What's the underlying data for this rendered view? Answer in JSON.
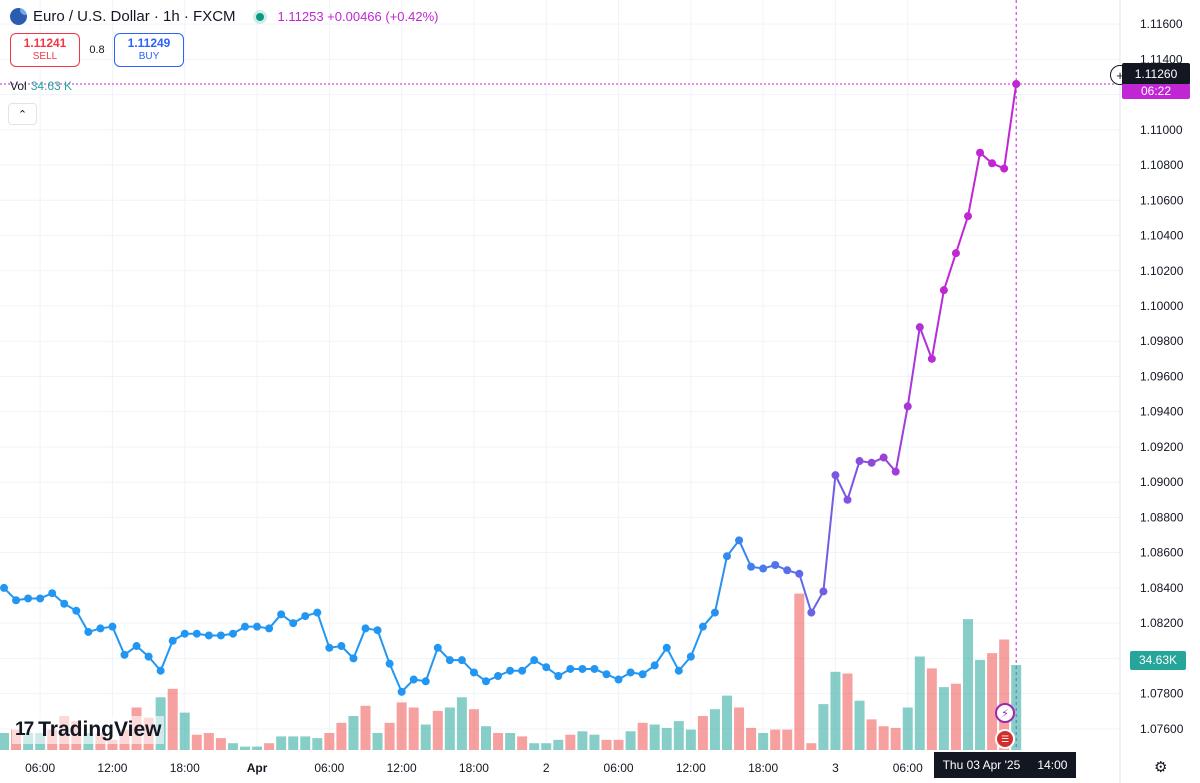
{
  "legend": {
    "symbol": "Euro / U.S. Dollar · 1h · FXCM",
    "quote": "1.11253 +0.00466 (+0.42%)"
  },
  "trade": {
    "sell_price": "1.11241",
    "sell_label": "SELL",
    "spread": "0.8",
    "buy_price": "1.11249",
    "buy_label": "BUY"
  },
  "volume_legend": {
    "label": "Vol",
    "value": "34.63 K"
  },
  "price_label": {
    "price": "1.11260",
    "countdown": "06:22"
  },
  "volume_label": "34.63K",
  "crosshair_date": {
    "date": "Thu 03 Apr '25",
    "time": "14:00"
  },
  "branding": "TradingView",
  "colors": {
    "line_blue": "#2196f3",
    "line_purple": "#c026d3",
    "vol_up": "#26a69a",
    "vol_down": "#ef5350"
  },
  "chart_data": {
    "type": "line",
    "y_ticks": [
      "1.11600",
      "1.11400",
      "1.11200",
      "1.11000",
      "1.10800",
      "1.10600",
      "1.10400",
      "1.10200",
      "1.10000",
      "1.09800",
      "1.09600",
      "1.09400",
      "1.09200",
      "1.09000",
      "1.08800",
      "1.08600",
      "1.08400",
      "1.08200",
      "1.08000",
      "1.07800",
      "1.07600"
    ],
    "ylim": [
      1.0748,
      1.1168
    ],
    "x_ticks": [
      {
        "i": 3,
        "label": "06:00"
      },
      {
        "i": 9,
        "label": "12:00"
      },
      {
        "i": 15,
        "label": "18:00"
      },
      {
        "i": 21,
        "label": "Apr"
      },
      {
        "i": 27,
        "label": "06:00"
      },
      {
        "i": 33,
        "label": "12:00"
      },
      {
        "i": 39,
        "label": "18:00"
      },
      {
        "i": 45,
        "label": "2"
      },
      {
        "i": 51,
        "label": "06:00"
      },
      {
        "i": 57,
        "label": "12:00"
      },
      {
        "i": 63,
        "label": "18:00"
      },
      {
        "i": 69,
        "label": "3"
      },
      {
        "i": 75,
        "label": "06:00"
      }
    ],
    "price": [
      1.084,
      1.0833,
      1.0834,
      1.0834,
      1.0837,
      1.0831,
      1.0827,
      1.0815,
      1.0817,
      1.0818,
      1.0802,
      1.0807,
      1.0801,
      1.0793,
      1.081,
      1.0814,
      1.0814,
      1.0813,
      1.0813,
      1.0814,
      1.0818,
      1.0818,
      1.0817,
      1.0825,
      1.082,
      1.0824,
      1.0826,
      1.0806,
      1.0807,
      1.08,
      1.0817,
      1.0816,
      1.0797,
      1.0781,
      1.0788,
      1.0787,
      1.0806,
      1.0799,
      1.0799,
      1.0792,
      1.0787,
      1.079,
      1.0793,
      1.0793,
      1.0799,
      1.0795,
      1.079,
      1.0794,
      1.0794,
      1.0794,
      1.0791,
      1.0788,
      1.0792,
      1.0791,
      1.0796,
      1.0806,
      1.0793,
      1.0801,
      1.0818,
      1.0826,
      1.0858,
      1.0867,
      1.0852,
      1.0851,
      1.0853,
      1.085,
      1.0848,
      1.0826,
      1.0838,
      1.0904,
      1.089,
      1.0912,
      1.0911,
      1.0914,
      1.0906,
      1.0943,
      1.0988,
      1.097,
      1.1009,
      1.103,
      1.1051,
      1.1087,
      1.1081,
      1.1078,
      1.1126
    ],
    "volume": [
      [
        1,
        0.1
      ],
      [
        0,
        0.12
      ],
      [
        1,
        0.1
      ],
      [
        1,
        0.1
      ],
      [
        0,
        0.12
      ],
      [
        0,
        0.2
      ],
      [
        0,
        0.17
      ],
      [
        1,
        0.1
      ],
      [
        0,
        0.1
      ],
      [
        0,
        0.06
      ],
      [
        0,
        0.12
      ],
      [
        0,
        0.25
      ],
      [
        0,
        0.19
      ],
      [
        1,
        0.31
      ],
      [
        0,
        0.36
      ],
      [
        1,
        0.22
      ],
      [
        0,
        0.09
      ],
      [
        0,
        0.1
      ],
      [
        0,
        0.07
      ],
      [
        1,
        0.04
      ],
      [
        1,
        0.02
      ],
      [
        1,
        0.02
      ],
      [
        0,
        0.04
      ],
      [
        1,
        0.08
      ],
      [
        1,
        0.08
      ],
      [
        1,
        0.08
      ],
      [
        1,
        0.07
      ],
      [
        0,
        0.1
      ],
      [
        0,
        0.16
      ],
      [
        1,
        0.2
      ],
      [
        0,
        0.26
      ],
      [
        1,
        0.1
      ],
      [
        0,
        0.16
      ],
      [
        0,
        0.28
      ],
      [
        0,
        0.25
      ],
      [
        1,
        0.15
      ],
      [
        0,
        0.23
      ],
      [
        1,
        0.25
      ],
      [
        1,
        0.31
      ],
      [
        0,
        0.24
      ],
      [
        1,
        0.14
      ],
      [
        0,
        0.1
      ],
      [
        1,
        0.1
      ],
      [
        0,
        0.08
      ],
      [
        1,
        0.04
      ],
      [
        1,
        0.04
      ],
      [
        1,
        0.06
      ],
      [
        0,
        0.09
      ],
      [
        1,
        0.11
      ],
      [
        1,
        0.09
      ],
      [
        0,
        0.06
      ],
      [
        0,
        0.06
      ],
      [
        1,
        0.11
      ],
      [
        0,
        0.16
      ],
      [
        1,
        0.15
      ],
      [
        1,
        0.13
      ],
      [
        1,
        0.17
      ],
      [
        1,
        0.12
      ],
      [
        0,
        0.2
      ],
      [
        1,
        0.24
      ],
      [
        1,
        0.32
      ],
      [
        0,
        0.25
      ],
      [
        0,
        0.13
      ],
      [
        1,
        0.1
      ],
      [
        0,
        0.12
      ],
      [
        0,
        0.12
      ],
      [
        0,
        0.92
      ],
      [
        0,
        0.04
      ],
      [
        1,
        0.27
      ],
      [
        1,
        0.46
      ],
      [
        0,
        0.45
      ],
      [
        1,
        0.29
      ],
      [
        0,
        0.18
      ],
      [
        0,
        0.14
      ],
      [
        0,
        0.13
      ],
      [
        1,
        0.25
      ],
      [
        1,
        0.55
      ],
      [
        0,
        0.48
      ],
      [
        1,
        0.37
      ],
      [
        0,
        0.39
      ],
      [
        1,
        0.77
      ],
      [
        1,
        0.53
      ],
      [
        0,
        0.57
      ],
      [
        0,
        0.65
      ],
      [
        1,
        0.5
      ]
    ]
  }
}
